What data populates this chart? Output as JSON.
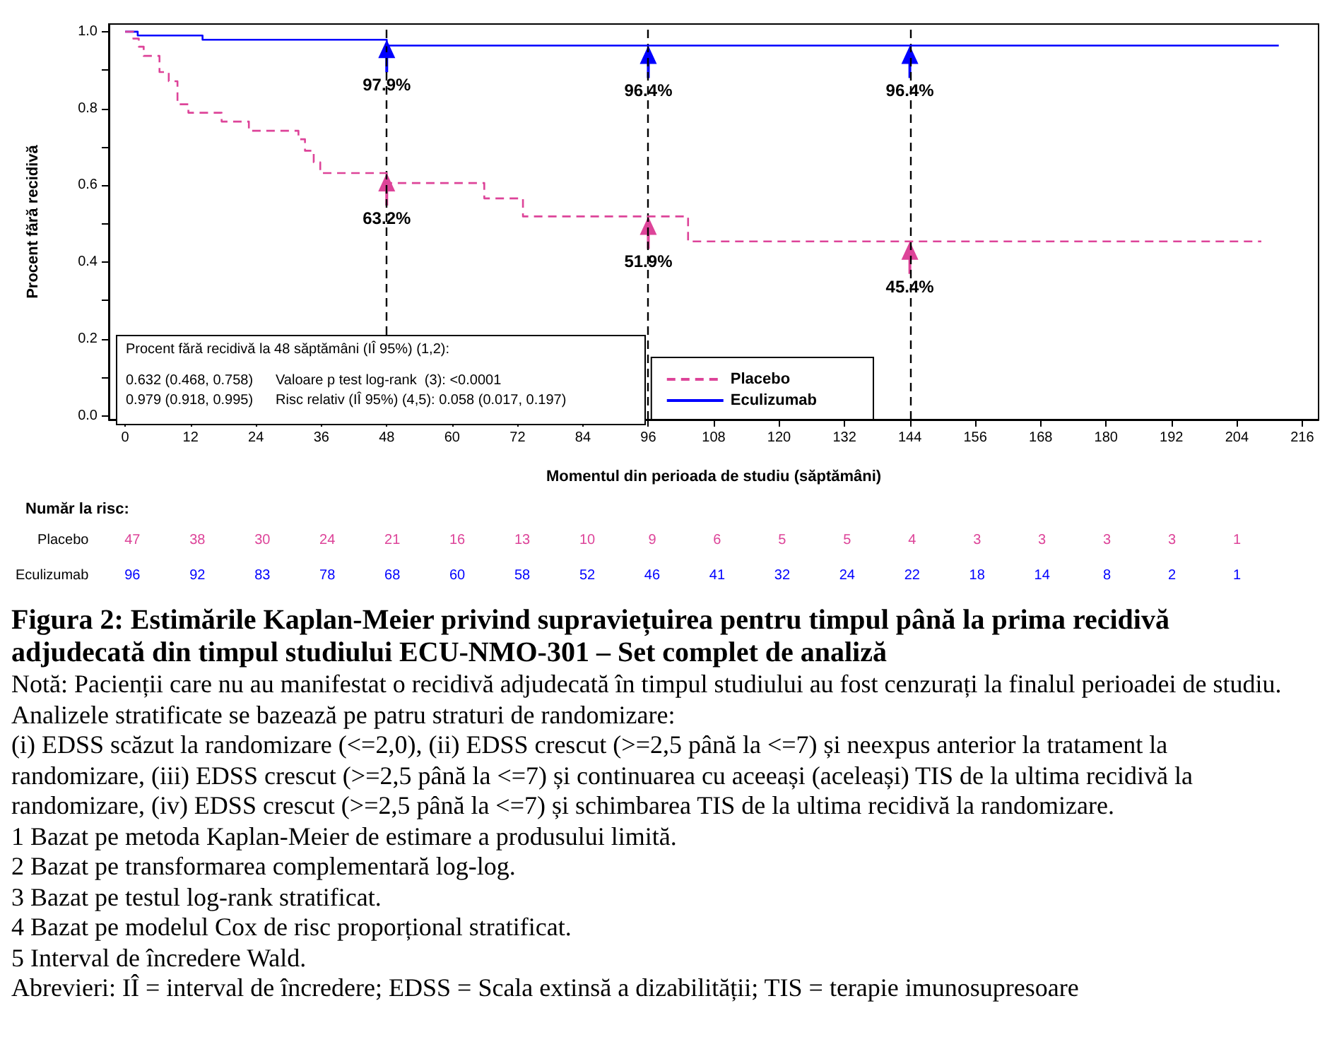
{
  "chart_data": [
    {
      "type": "step",
      "ylabel": "Procent fără recidivă",
      "xlabel": "Momentul din perioada de studiu (săptămâni)",
      "xlim": [
        -3,
        219
      ],
      "xticks": [
        0,
        12,
        24,
        36,
        48,
        60,
        72,
        84,
        96,
        108,
        120,
        132,
        144,
        156,
        168,
        180,
        192,
        204,
        216
      ],
      "ylim": [
        -0.01,
        1.02
      ],
      "yticks": [
        {
          "value": 0,
          "label": "0.0"
        },
        {
          "value": 0.1,
          "label": null
        },
        0.2,
        {
          "value": 0.3,
          "label": null
        },
        0.4,
        {
          "value": 0.5,
          "label": null
        },
        0.6,
        {
          "value": 0.7,
          "label": null
        },
        0.8,
        {
          "value": 0.9,
          "label": null
        },
        {
          "value": 1,
          "label": "1.0"
        }
      ],
      "grid": false,
      "legend": "bottom right",
      "marker": "none",
      "series": [
        {
          "name": "Placebo",
          "color": "#dd4499",
          "line_style": "dashed",
          "x": [
            0,
            1.5,
            2.5,
            3.4,
            6.3,
            8.0,
            9.6,
            11.6,
            17.7,
            22.7,
            31.8,
            33.0,
            34.6,
            35.8,
            48,
            65.9,
            73,
            103.3,
            208.5
          ],
          "values": [
            1,
            0.982,
            0.961,
            0.937,
            0.895,
            0.871,
            0.811,
            0.789,
            0.766,
            0.742,
            0.72,
            0.69,
            0.66,
            0.632,
            0.606,
            0.566,
            0.519,
            0.454,
            0.454
          ]
        },
        {
          "name": "Eculizumab",
          "color": "#0000ff",
          "line_style": "solid",
          "x": [
            0,
            2.3,
            14.2,
            48,
            211.7
          ],
          "values": [
            1,
            0.99,
            0.979,
            0.964,
            0.964
          ]
        }
      ],
      "ref_lines": [
        {
          "axis": "x",
          "value": 48,
          "color": "#000000",
          "line_style": "dashed"
        },
        {
          "axis": "x",
          "value": 96,
          "color": "#000000",
          "line_style": "dashed"
        },
        {
          "axis": "x",
          "value": 144,
          "color": "#000000",
          "line_style": "dashed"
        }
      ],
      "annotations": [
        {
          "text": "97.9%",
          "x": 48,
          "y": 0.979
        },
        {
          "text": "96.4%",
          "x": 96,
          "y": 0.964
        },
        {
          "text": "96.4%",
          "x": 144,
          "y": 0.964
        },
        {
          "text": "63.2%",
          "x": 48,
          "y": 0.632
        },
        {
          "text": "51.9%",
          "x": 96,
          "y": 0.519
        },
        {
          "text": "45.4%",
          "x": 144,
          "y": 0.454
        },
        "Procent fără recidivă la 48 săptămâni (IÎ 95%) (1,2):",
        "0.632 (0.468, 0.758)",
        "Valoare p test log-rank  (3): <0.0001",
        "0.979 (0.918, 0.995)",
        "Risc relativ (IÎ 95%) (4,5): 0.058 (0.017, 0.197)"
      ]
    },
    {
      "type": "heatmap",
      "title": "Număr la risc:",
      "categories": [
        null,
        null,
        null,
        null,
        null,
        null,
        null,
        null,
        null,
        null,
        null,
        null,
        null,
        null,
        null,
        null,
        null,
        null
      ],
      "y_categories": [
        "Placebo",
        "Eculizumab"
      ],
      "data_labels": true,
      "cells": [
        [
          47,
          38,
          30,
          24,
          21,
          16,
          13,
          10,
          9,
          6,
          5,
          5,
          4,
          3,
          3,
          3,
          3,
          1
        ],
        [
          96,
          92,
          83,
          78,
          68,
          60,
          58,
          52,
          46,
          41,
          32,
          24,
          22,
          18,
          14,
          8,
          2,
          1
        ]
      ]
    },
    {
      "type": "other",
      "title": "Figura 2: Estimările Kaplan-Meier privind supraviețuirea pentru timpul până la prima recidivă adjudecată din timpul studiului ECU-NMO-301 – Set complet de analiză",
      "annotations": [
        "Notă: Pacienții care nu au manifestat o recidivă adjudecată în timpul studiului au fost cenzurați la finalul perioadei de studiu.",
        "Analizele stratificate se bazează pe patru straturi de randomizare:",
        "(i) EDSS scăzut la randomizare (<=2,0), (ii) EDSS crescut (>=2,5 până la <=7) și neexpus anterior la tratament la randomizare, (iii) EDSS crescut (>=2,5 până la <=7) și continuarea cu aceeași (aceleași) TIS de la ultima recidivă la randomizare, (iv) EDSS crescut (>=2,5 până la <=7) și schimbarea TIS de la ultima recidivă la randomizare.",
        "1 Bazat pe metoda Kaplan-Meier de estimare a produsului limită.",
        "2 Bazat pe transformarea complementară log-log.",
        "3 Bazat pe testul log-rank stratificat.",
        "4 Bazat pe modelul Cox de risc proporțional stratificat.",
        "5 Interval de încredere Wald.",
        "Abrevieri: IÎ = interval de încredere; EDSS = Scala extinsă a dizabilității; TIS = terapie imunosupresoare"
      ]
    }
  ]
}
